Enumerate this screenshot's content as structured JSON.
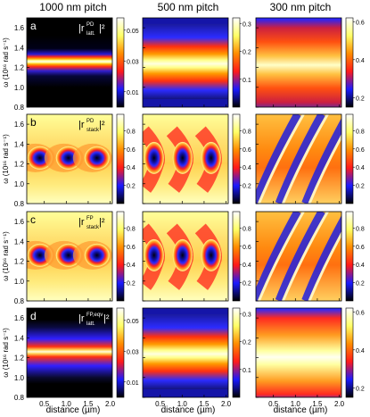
{
  "figure": {
    "column_titles": [
      "1000 nm pitch",
      "500 nm pitch",
      "300 nm pitch"
    ],
    "xlabel": "distance (µm)",
    "ylabel": "ω (10¹⁶ rad s⁻¹)",
    "row_labels": [
      "a",
      "b",
      "c",
      "d"
    ],
    "quantity_labels": [
      {
        "main": "|r",
        "sup": "PD",
        "sub": "latt.",
        "tail": "|²"
      },
      {
        "main": "|r",
        "sup": "PD",
        "sub": "stack",
        "tail": "|²"
      },
      {
        "main": "|r",
        "sup": "FP",
        "sub": "stack",
        "tail": "|²"
      },
      {
        "main": "|r",
        "sup": "FP,eqv",
        "sub": "latt.",
        "tail": "|²"
      }
    ]
  },
  "chart_data": {
    "type": "heatmap",
    "rows": 4,
    "columns": 3,
    "xlim": [
      0.1,
      2.05
    ],
    "ylim": [
      0.8,
      1.7
    ],
    "x_ticks": [
      0.5,
      1.0,
      1.5,
      2.0
    ],
    "x_tick_labels": [
      "0.5",
      "1.0",
      "1.5",
      "2.0"
    ],
    "y_ticks": [
      0.8,
      1.0,
      1.2,
      1.4,
      1.6
    ],
    "y_tick_labels": [
      "0.8",
      "1.0",
      "1.2",
      "1.4",
      "1.6"
    ],
    "colormap": [
      "#000000",
      "#1a1aff",
      "#ff1a1a",
      "#ff8c00",
      "#ffff66",
      "#ffffff"
    ],
    "colorbars": [
      [
        {
          "range": [
            0.0,
            0.058
          ],
          "ticks": [
            0.01,
            0.03,
            0.05
          ],
          "tick_labels": [
            "0.01",
            "0.03",
            "0.05"
          ]
        },
        {
          "range": [
            0.0,
            0.32
          ],
          "ticks": [
            0.1,
            0.2,
            0.3
          ],
          "tick_labels": [
            "0.1",
            "0.2",
            "0.3"
          ]
        },
        {
          "range": [
            0.15,
            0.62
          ],
          "ticks": [
            0.2,
            0.4,
            0.6
          ],
          "tick_labels": [
            "0.2",
            "0.4",
            "0.6"
          ]
        }
      ],
      [
        {
          "range": [
            0.0,
            0.98
          ],
          "ticks": [
            0.2,
            0.4,
            0.6,
            0.8
          ],
          "tick_labels": [
            "0.2",
            "0.4",
            "0.6",
            "0.8"
          ]
        },
        {
          "range": [
            0.0,
            0.98
          ],
          "ticks": [
            0.2,
            0.4,
            0.6,
            0.8
          ],
          "tick_labels": [
            "0.2",
            "0.4",
            "0.6",
            "0.8"
          ]
        },
        {
          "range": [
            0.0,
            0.98
          ],
          "ticks": [
            0.2,
            0.4,
            0.6,
            0.8
          ],
          "tick_labels": [
            "0.2",
            "0.4",
            "0.6",
            "0.8"
          ]
        }
      ],
      [
        {
          "range": [
            0.0,
            0.98
          ],
          "ticks": [
            0.2,
            0.4,
            0.6,
            0.8
          ],
          "tick_labels": [
            "0.2",
            "0.4",
            "0.6",
            "0.8"
          ]
        },
        {
          "range": [
            0.0,
            0.98
          ],
          "ticks": [
            0.2,
            0.4,
            0.6,
            0.8
          ],
          "tick_labels": [
            "0.2",
            "0.4",
            "0.6",
            "0.8"
          ]
        },
        {
          "range": [
            0.0,
            0.98
          ],
          "ticks": [
            0.2,
            0.4,
            0.6,
            0.8
          ],
          "tick_labels": [
            "0.2",
            "0.4",
            "0.6",
            "0.8"
          ]
        }
      ],
      [
        {
          "range": [
            0.0,
            0.058
          ],
          "ticks": [
            0.01,
            0.03,
            0.05
          ],
          "tick_labels": [
            "0.01",
            "0.03",
            "0.05"
          ]
        },
        {
          "range": [
            0.0,
            0.32
          ],
          "ticks": [
            0.1,
            0.2,
            0.3
          ],
          "tick_labels": [
            "0.1",
            "0.2",
            "0.3"
          ]
        },
        {
          "range": [
            0.15,
            0.62
          ],
          "ticks": [
            0.2,
            0.4,
            0.6
          ],
          "tick_labels": [
            "0.2",
            "0.4",
            "0.6"
          ]
        }
      ]
    ],
    "resonance_center": 1.26
  }
}
